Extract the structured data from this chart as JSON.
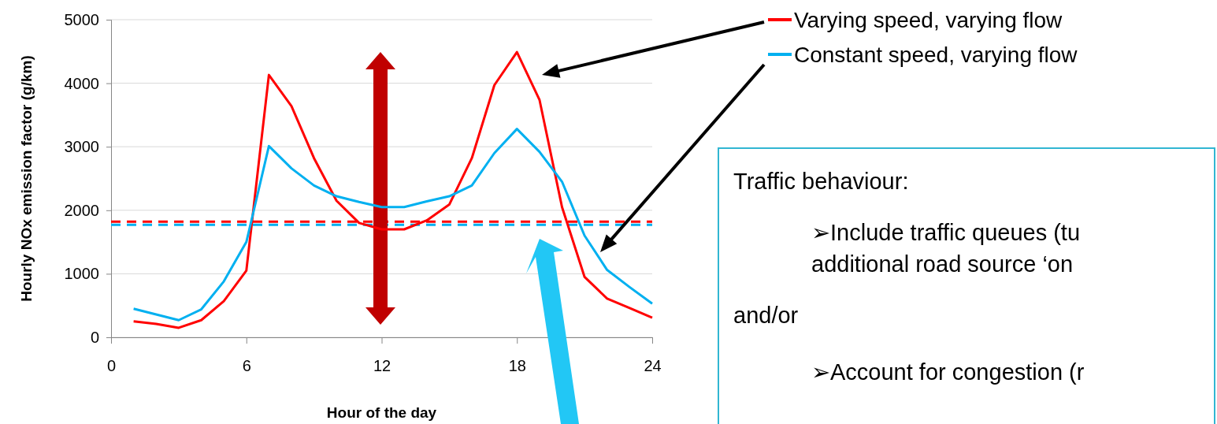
{
  "chart_data": {
    "type": "line",
    "xlabel": "Hour of the day",
    "ylabel": "Hourly NOx emission factor (g/km)",
    "x": [
      1,
      2,
      3,
      4,
      5,
      6,
      7,
      8,
      9,
      10,
      11,
      12,
      13,
      14,
      15,
      16,
      17,
      18,
      19,
      20,
      21,
      22,
      23,
      24
    ],
    "series": [
      {
        "name": "Varying speed, varying flow",
        "color": "#ff0000",
        "values": [
          250,
          210,
          150,
          270,
          570,
          1050,
          4130,
          3640,
          2820,
          2150,
          1800,
          1700,
          1700,
          1840,
          2090,
          2820,
          3970,
          4490,
          3740,
          2050,
          950,
          610,
          460,
          310
        ]
      },
      {
        "name": "Constant speed, varying flow",
        "color": "#00b0f0",
        "values": [
          450,
          360,
          270,
          440,
          880,
          1500,
          3010,
          2660,
          2390,
          2220,
          2130,
          2050,
          2050,
          2140,
          2220,
          2390,
          2900,
          3280,
          2920,
          2450,
          1600,
          1060,
          790,
          530
        ]
      }
    ],
    "xlim": [
      0,
      24
    ],
    "xticks": [
      0,
      6,
      12,
      18,
      24
    ],
    "ylim": [
      0,
      5000
    ],
    "yticks": [
      0,
      1000,
      2000,
      3000,
      4000,
      5000
    ],
    "grid": "y",
    "legend": "top right",
    "marker": "none",
    "line_style": "solid",
    "ref_lines": [
      {
        "axis": "y",
        "value": 1820,
        "color": "#ff0000",
        "line_style": "dashed"
      },
      {
        "axis": "y",
        "value": 1770,
        "color": "#00b0f0",
        "line_style": "dashed"
      }
    ],
    "annotations": [
      "Traffic behaviour:",
      "➢Include traffic queues (tu",
      "additional road source ‘on",
      "and/or",
      "➢Account for congestion (r"
    ]
  }
}
